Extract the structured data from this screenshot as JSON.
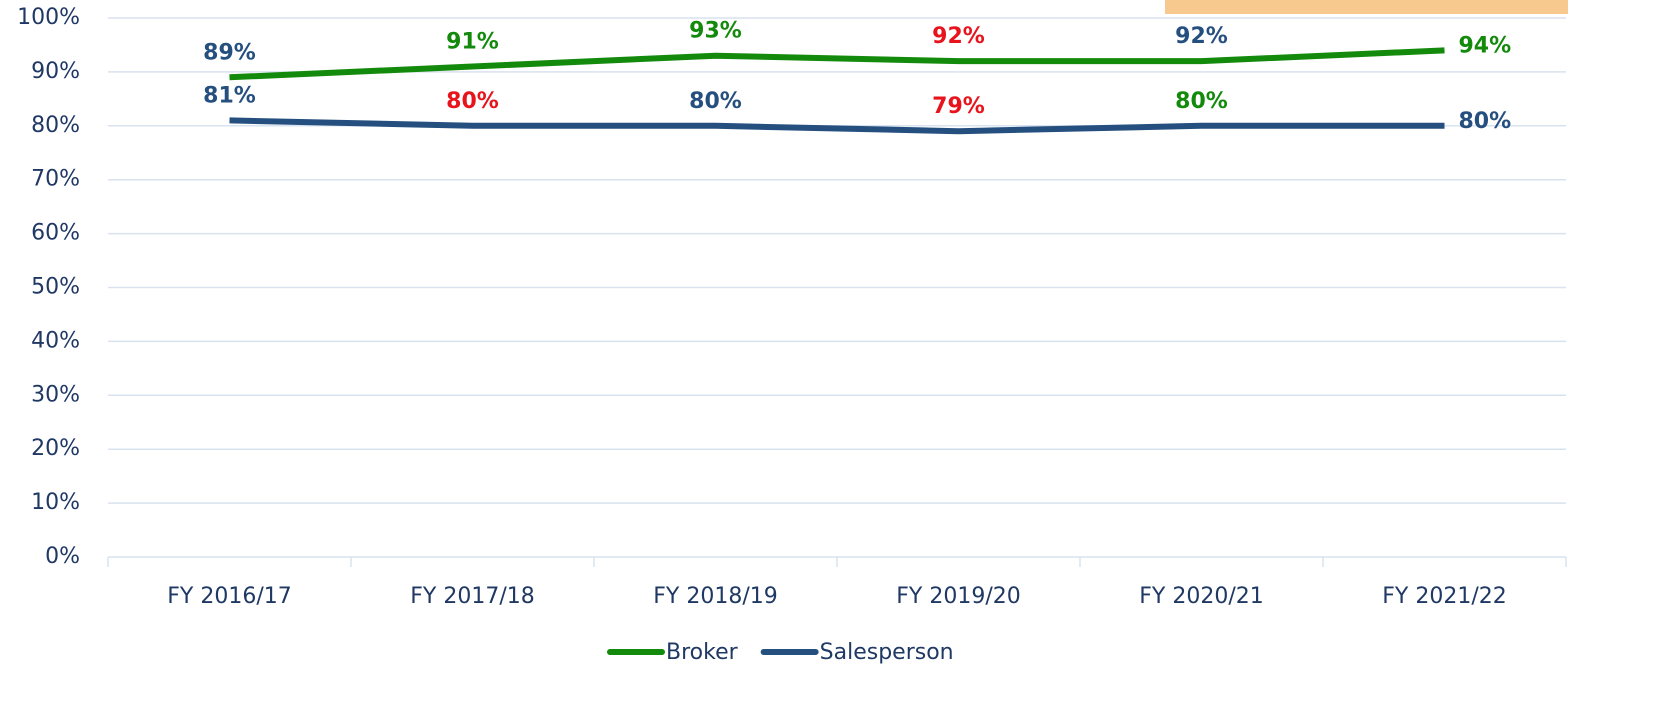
{
  "chart_data": {
    "type": "line",
    "categories": [
      "FY 2016/17",
      "FY 2017/18",
      "FY 2018/19",
      "FY 2019/20",
      "FY 2020/21",
      "FY 2021/22"
    ],
    "series": [
      {
        "name": "Broker",
        "color": "#138a0b",
        "values": [
          89,
          91,
          93,
          92,
          92,
          94
        ],
        "value_labels": [
          "89%",
          "91%",
          "93%",
          "92%",
          "92%",
          "94%"
        ],
        "value_label_colors": [
          "#254f7f",
          "#138a0b",
          "#138a0b",
          "#e8141c",
          "#254f7f",
          "#138a0b"
        ]
      },
      {
        "name": "Salesperson",
        "color": "#254f7f",
        "values": [
          81,
          80,
          80,
          79,
          80,
          80
        ],
        "value_labels": [
          "81%",
          "80%",
          "80%",
          "79%",
          "80%",
          "80%"
        ],
        "value_label_colors": [
          "#254f7f",
          "#e8141c",
          "#254f7f",
          "#e8141c",
          "#138a0b",
          "#254f7f"
        ]
      }
    ],
    "ylim": [
      0,
      100
    ],
    "yticks": [
      {
        "value": 0,
        "label": "0%"
      },
      {
        "value": 10,
        "label": "10%"
      },
      {
        "value": 20,
        "label": "20%"
      },
      {
        "value": 30,
        "label": "30%"
      },
      {
        "value": 40,
        "label": "40%"
      },
      {
        "value": 50,
        "label": "50%"
      },
      {
        "value": 60,
        "label": "60%"
      },
      {
        "value": 70,
        "label": "70%"
      },
      {
        "value": 80,
        "label": "80%"
      },
      {
        "value": 90,
        "label": "90%"
      },
      {
        "value": 100,
        "label": "100%"
      }
    ],
    "grid": true,
    "legend": "bottom"
  }
}
